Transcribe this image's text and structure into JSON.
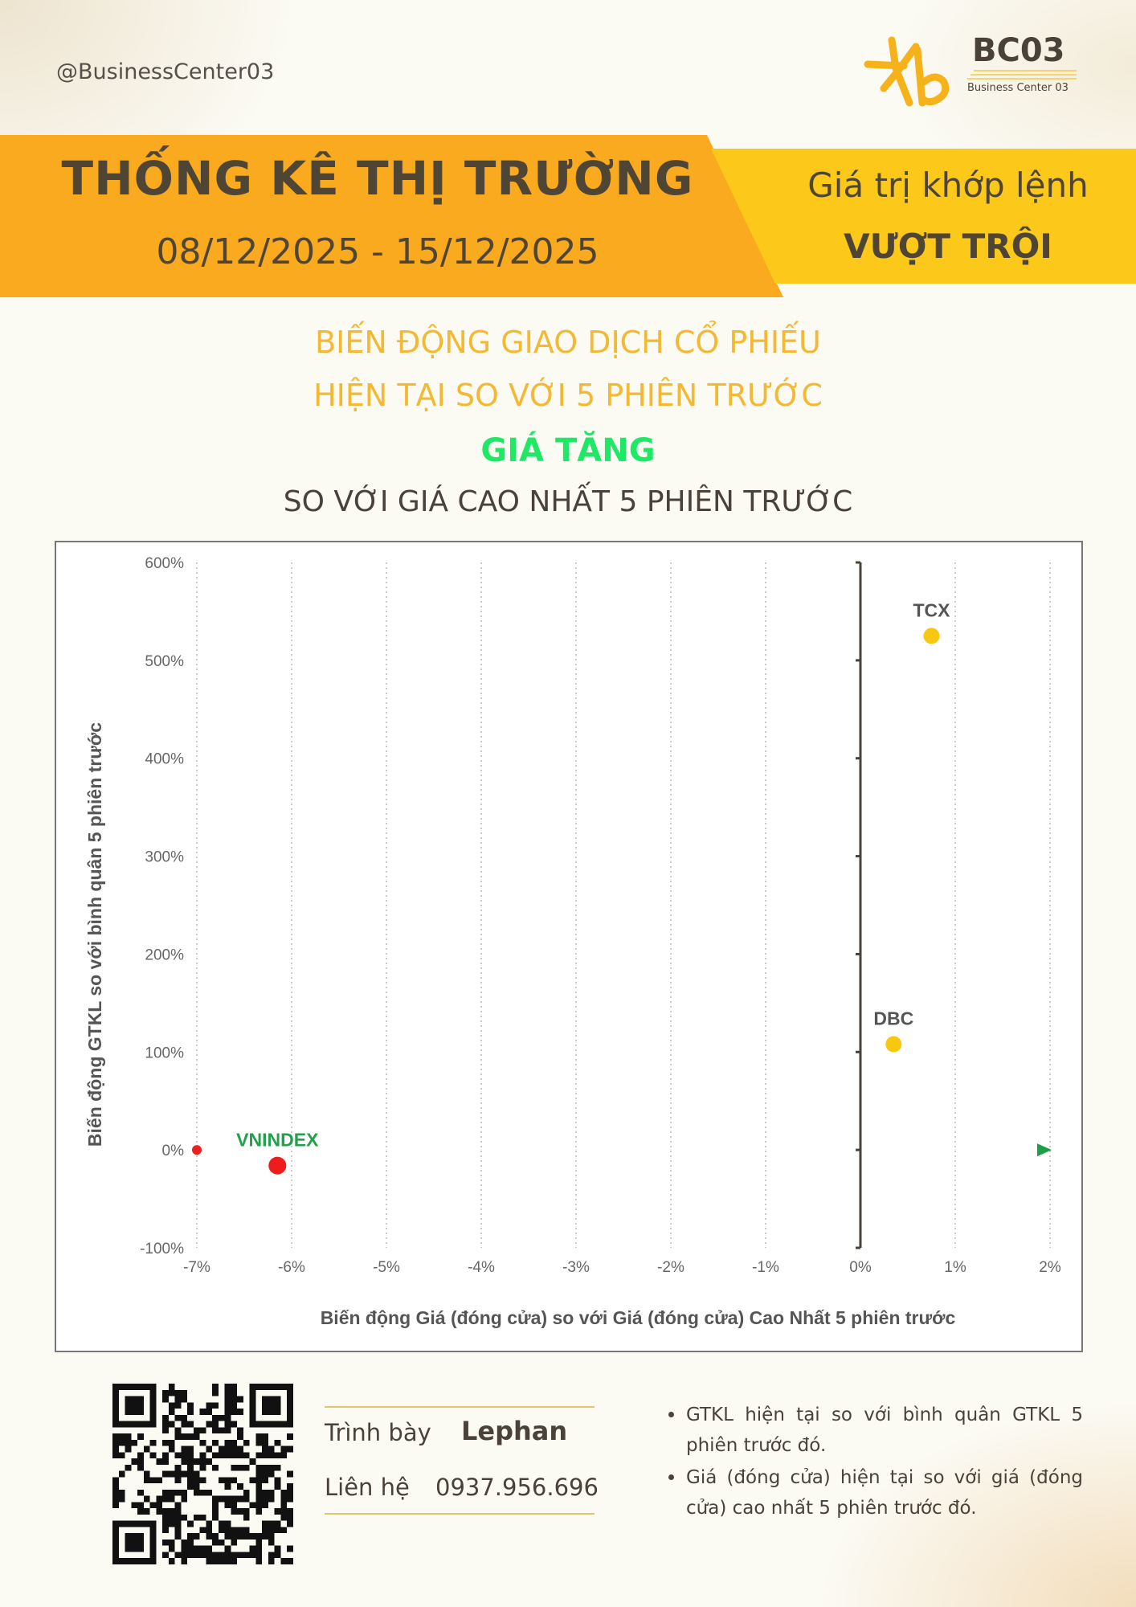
{
  "header": {
    "handle": "@BusinessCenter03",
    "logo": {
      "brand": "BC03",
      "subtitle": "Business Center 03",
      "icon": "kb-logo-icon",
      "color": "#f6b21b"
    }
  },
  "banner": {
    "title": "THỐNG KÊ THỊ TRƯỜNG",
    "dates": "08/12/2025 - 15/12/2025",
    "right_line1": "Giá trị khớp lệnh",
    "right_line2": "VƯỢT TRỘI",
    "colors": {
      "left": "#f9aa1f",
      "right": "#fcc81a"
    }
  },
  "headline": {
    "line1": "BIẾN ĐỘNG GIAO DỊCH CỔ PHIẾU",
    "line2": "HIỆN TẠI SO VỚI 5 PHIÊN TRƯỚC",
    "line3": "GIÁ TĂNG",
    "line4": "SO VỚI GIÁ CAO NHẤT 5 PHIÊN TRƯỚC"
  },
  "chart_data": {
    "type": "scatter",
    "xlabel": "Biến động Giá (đóng cửa) so với Giá (đóng cửa) Cao Nhất 5 phiên trước",
    "ylabel": "Biến động GTKL so với bình quân 5 phiên trước",
    "xlim": [
      -7,
      2
    ],
    "ylim": [
      -100,
      600
    ],
    "x_ticks": [
      "-7%",
      "-6%",
      "-5%",
      "-4%",
      "-3%",
      "-2%",
      "-1%",
      "0%",
      "1%",
      "2%"
    ],
    "y_ticks": [
      "600%",
      "500%",
      "400%",
      "300%",
      "200%",
      "100%",
      "0%",
      "-100%"
    ],
    "x_tick_values": [
      -7,
      -6,
      -5,
      -4,
      -3,
      -2,
      -1,
      0,
      1,
      2
    ],
    "y_tick_values": [
      600,
      500,
      400,
      300,
      200,
      100,
      0,
      -100
    ],
    "grid": "vertical dotted",
    "points": [
      {
        "label": "TCX",
        "x": 0.75,
        "y": 525,
        "color": "#f8c70f"
      },
      {
        "label": "DBC",
        "x": 0.35,
        "y": 108,
        "color": "#f8c70f"
      },
      {
        "label": "VNINDEX",
        "x": -6.15,
        "y": -16,
        "color": "#ee1c1c",
        "label_color": "#22a04b"
      }
    ],
    "x_axis_gradient": [
      "#e8231e",
      "#f0c020",
      "#1f9e4a"
    ]
  },
  "presenter": {
    "label": "Trình bày",
    "name": "Lephan",
    "contact_label": "Liên hệ",
    "phone": "0937.956.696"
  },
  "notes": [
    "GTKL hiện tại so với bình quân GTKL 5 phiên trước đó.",
    "Giá (đóng cửa) hiện tại so với giá (đóng cửa) cao nhất 5 phiên trước đó."
  ]
}
